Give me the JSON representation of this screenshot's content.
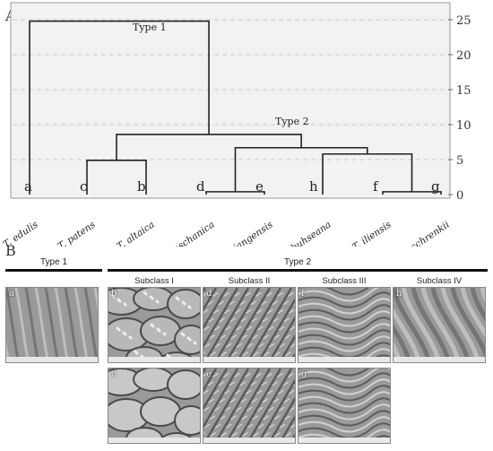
{
  "panel_a": {
    "letter": "A",
    "y_ticks": [
      "0",
      "5",
      "10",
      "15",
      "20",
      "25"
    ],
    "cluster_labels": {
      "type1": "Type 1",
      "type2": "Type 2"
    },
    "leaf_letters": [
      "a",
      "c",
      "b",
      "d",
      "e",
      "h",
      "f",
      "g"
    ],
    "species": [
      "T. edulis",
      "T. patens",
      "T. altaica",
      "T. thianschanica",
      "T. sinkiangensis",
      "T. buhseana",
      "T. iliensis",
      "T. schrenkii"
    ]
  },
  "panel_b": {
    "letter": "B",
    "type1_label": "Type 1",
    "type2_label": "Type 2",
    "subclasses": [
      "Subclass I",
      "Subclass II",
      "Subclass III",
      "Subclass IV"
    ],
    "images": [
      {
        "letter": "a",
        "texture": "smooth-ridges"
      },
      {
        "letter": "b",
        "texture": "cells"
      },
      {
        "letter": "d",
        "texture": "striate"
      },
      {
        "letter": "f",
        "texture": "wrinkled"
      },
      {
        "letter": "h",
        "texture": "smooth-diagonal"
      },
      {
        "letter": "c",
        "texture": "cells-smooth"
      },
      {
        "letter": "e",
        "texture": "striate"
      },
      {
        "letter": "g",
        "texture": "wrinkled"
      }
    ]
  },
  "colors": {
    "plot_bg": "#f2f2f2",
    "line": "#222222",
    "rule": "#111111"
  }
}
